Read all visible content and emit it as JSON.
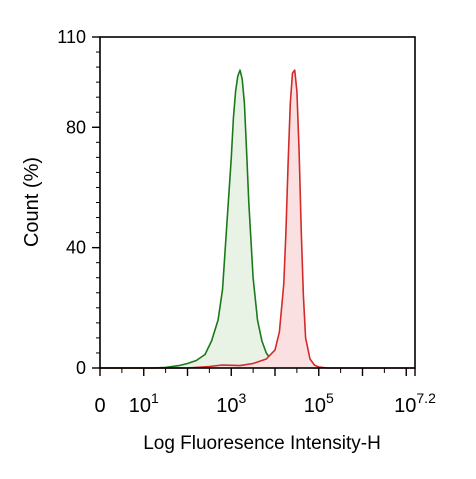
{
  "chart_data": {
    "type": "area",
    "xlabel": "Log Fluoresence Intensity-H",
    "ylabel": "Count  (%)",
    "xscale": "log",
    "xlim": [
      0,
      7.2
    ],
    "ylim": [
      0,
      110
    ],
    "y_ticks": [
      "0",
      "40",
      "80",
      "110"
    ],
    "x_ticks": [
      {
        "base": "0",
        "exp": "",
        "pos": 0
      },
      {
        "base": "10",
        "exp": "1",
        "pos": 1
      },
      {
        "base": "10",
        "exp": "3",
        "pos": 3
      },
      {
        "base": "10",
        "exp": "5",
        "pos": 5
      },
      {
        "base": "10",
        "exp": "7.2",
        "pos": 7.2
      }
    ],
    "grid": false,
    "series": [
      {
        "color": "#1a7a1a",
        "fill": "#e8f3e6",
        "x": [
          0,
          1.2,
          1.5,
          1.8,
          2.0,
          2.2,
          2.4,
          2.55,
          2.7,
          2.8,
          2.9,
          3.0,
          3.05,
          3.1,
          3.15,
          3.2,
          3.25,
          3.3,
          3.35,
          3.4,
          3.5,
          3.6,
          3.7,
          3.8,
          3.9,
          4.0,
          4.2,
          4.5,
          5.0
        ],
        "y": [
          0,
          0,
          0.2,
          0.8,
          1.5,
          2.5,
          4.5,
          9,
          16,
          26,
          48,
          70,
          83,
          92,
          97,
          99,
          96,
          88,
          72,
          55,
          30,
          16,
          9,
          5,
          3,
          1.5,
          0.8,
          0.2,
          0
        ]
      },
      {
        "color": "#d42a2a",
        "fill": "#fbe0e2",
        "x": [
          0,
          2.0,
          2.5,
          2.8,
          3.2,
          3.5,
          3.8,
          4.0,
          4.1,
          4.2,
          4.25,
          4.3,
          4.35,
          4.4,
          4.45,
          4.5,
          4.55,
          4.6,
          4.65,
          4.7,
          4.8,
          4.9,
          5.0,
          5.2,
          7.2
        ],
        "y": [
          0,
          0,
          0.5,
          1,
          0.8,
          1.5,
          3,
          6,
          12,
          28,
          45,
          68,
          88,
          98,
          99,
          92,
          72,
          45,
          24,
          10,
          3,
          1,
          0.3,
          0,
          0
        ]
      }
    ]
  }
}
